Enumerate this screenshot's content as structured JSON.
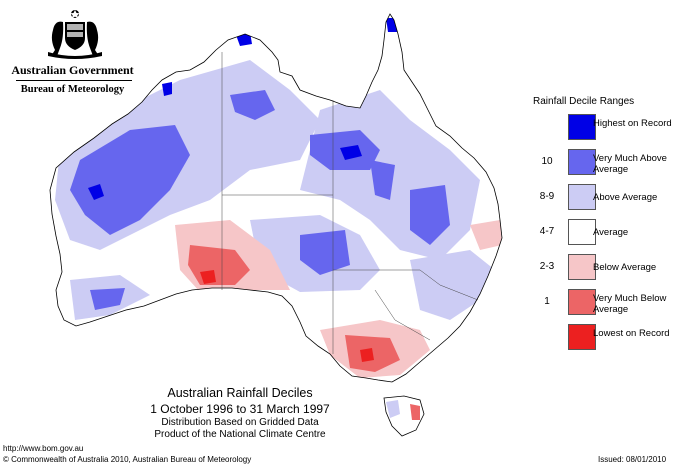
{
  "header": {
    "government": "Australian Government",
    "bureau": "Bureau of Meteorology"
  },
  "legend": {
    "title": "Rainfall Decile Ranges",
    "items": [
      {
        "code": "",
        "label": "Highest on Record",
        "color": "#0000e6"
      },
      {
        "code": "10",
        "label": "Very Much Above Average",
        "color": "#6666ee"
      },
      {
        "code": "8-9",
        "label": "Above Average",
        "color": "#ccccf4"
      },
      {
        "code": "4-7",
        "label": "Average",
        "color": "#ffffff"
      },
      {
        "code": "2-3",
        "label": "Below Average",
        "color": "#f6c6c8"
      },
      {
        "code": "1",
        "label": "Very Much Below Average",
        "color": "#ec6566"
      },
      {
        "code": "",
        "label": "Lowest on Record",
        "color": "#ec2020"
      }
    ]
  },
  "map": {
    "title": "Australian Rainfall Deciles",
    "period": "1 October 1996 to 31 March 1997",
    "basis_line1": "Distribution Based on Gridded Data",
    "basis_line2": "Product of the National Climate Centre"
  },
  "footer": {
    "url": "http://www.bom.gov.au",
    "copyright": "© Commonwealth of Australia 2010, Australian Bureau of Meteorology",
    "issued": "Issued: 08/01/2010"
  }
}
